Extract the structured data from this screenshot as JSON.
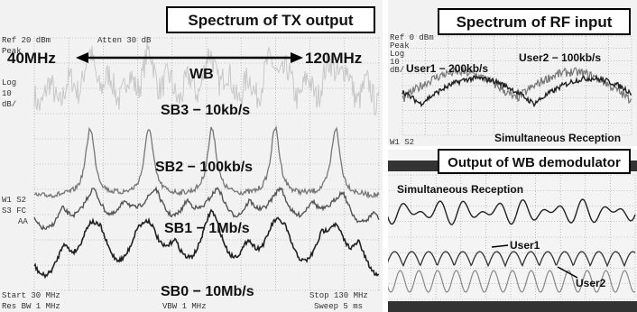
{
  "tx_panel": {
    "title": "Spectrum of TX output",
    "header": [
      "Ref 20 dBm",
      "Atten 30 dB"
    ],
    "scale": [
      "Peak",
      "Log",
      "10",
      "dB/"
    ],
    "side": [
      "W1 S2",
      "S3 FC",
      "AA"
    ],
    "range_start": "40MHz",
    "range_end": "120MHz",
    "traces": [
      "WB",
      "SB3 − 10kb/s",
      "SB2 − 100kb/s",
      "SB1 − 1Mb/s",
      "SB0 − 10Mb/s"
    ],
    "footer": [
      "Start 30 MHz",
      "Stop 130 MHz",
      "Res BW 1 MHz",
      "VBW 1 MHz",
      "Sweep 5 ms"
    ]
  },
  "rf_panel": {
    "title": "Spectrum of RF input",
    "header": [
      "Ref 0 dBm",
      "Peak",
      "Log",
      "10",
      "dB/"
    ],
    "side": "W1 S2",
    "user1": "User1 − 200kb/s",
    "user2": "User2 − 100kb/s",
    "caption": "Simultaneous Reception"
  },
  "demod_panel": {
    "title": "Output of WB demodulator",
    "caption": "Simultaneous Reception",
    "user1": "User1",
    "user2": "User2"
  }
}
